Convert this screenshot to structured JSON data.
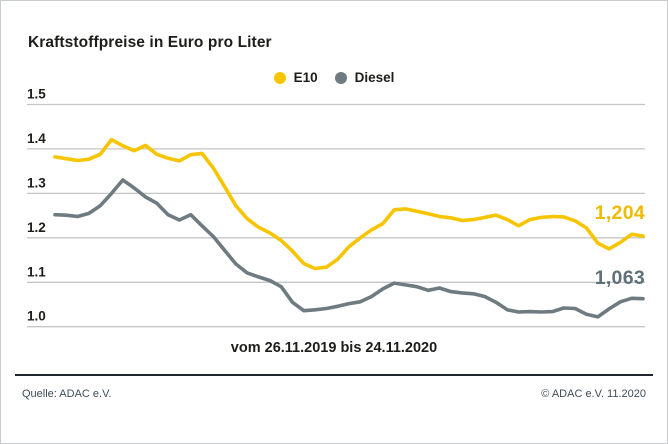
{
  "title": "Kraftstoffpreise in Euro pro Liter",
  "footer": {
    "source": "Quelle: ADAC e.V.",
    "copyright": "© ADAC e.V. 11.2020"
  },
  "colors": {
    "background": "#FFFFFF",
    "grid": "#C6C6C6",
    "title_text": "#1D1D1B",
    "footer_text": "#3E4D57",
    "footer_rule": "#20262B",
    "e10": "#F6C500",
    "diesel": "#6E7B80",
    "e10_label": "#EFBB00",
    "diesel_label": "#5F7078"
  },
  "chart_data": {
    "type": "line",
    "title": "Kraftstoffpreise in Euro pro Liter",
    "x_note": "vom 26.11.2019 bis 24.11.2020",
    "x_range": [
      "26.11.2019",
      "24.11.2020"
    ],
    "x_interval": "weekly",
    "ylabel": "Euro pro Liter",
    "ylim": [
      1.0,
      1.5
    ],
    "yticks": [
      "1.5",
      "1.4",
      "1.3",
      "1.2",
      "1.1",
      "1.0"
    ],
    "grid": "horizontal",
    "legend_position": "top-center",
    "series": [
      {
        "name": "E10",
        "color": "#F6C500",
        "end_label": "1,204",
        "end_value": 1.204,
        "values": [
          1.382,
          1.378,
          1.374,
          1.377,
          1.388,
          1.421,
          1.407,
          1.396,
          1.408,
          1.388,
          1.379,
          1.373,
          1.387,
          1.39,
          1.357,
          1.315,
          1.272,
          1.243,
          1.224,
          1.211,
          1.194,
          1.17,
          1.142,
          1.131,
          1.134,
          1.152,
          1.18,
          1.2,
          1.218,
          1.232,
          1.263,
          1.265,
          1.26,
          1.254,
          1.248,
          1.245,
          1.239,
          1.241,
          1.246,
          1.251,
          1.241,
          1.227,
          1.241,
          1.246,
          1.248,
          1.247,
          1.238,
          1.222,
          1.188,
          1.175,
          1.19,
          1.208,
          1.204
        ]
      },
      {
        "name": "Diesel",
        "color": "#6E7B80",
        "end_label": "1,063",
        "end_value": 1.063,
        "values": [
          1.252,
          1.251,
          1.248,
          1.255,
          1.272,
          1.3,
          1.33,
          1.312,
          1.292,
          1.278,
          1.252,
          1.24,
          1.252,
          1.227,
          1.203,
          1.172,
          1.141,
          1.121,
          1.112,
          1.104,
          1.09,
          1.055,
          1.036,
          1.038,
          1.041,
          1.046,
          1.052,
          1.056,
          1.068,
          1.085,
          1.098,
          1.094,
          1.09,
          1.082,
          1.087,
          1.079,
          1.076,
          1.074,
          1.068,
          1.055,
          1.038,
          1.033,
          1.034,
          1.033,
          1.034,
          1.042,
          1.041,
          1.028,
          1.022,
          1.04,
          1.056,
          1.064,
          1.063
        ]
      }
    ]
  }
}
